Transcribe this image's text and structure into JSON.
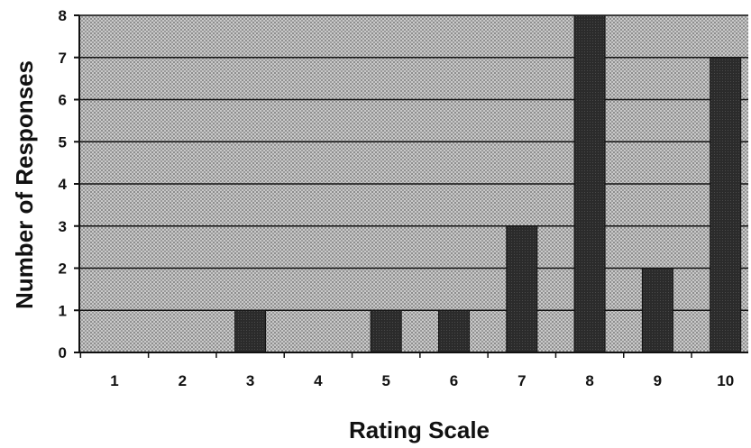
{
  "chart_data": {
    "type": "bar",
    "title": "",
    "xlabel": "Rating Scale",
    "ylabel": "Number of Responses",
    "categories": [
      "1",
      "2",
      "3",
      "4",
      "5",
      "6",
      "7",
      "8",
      "9",
      "10"
    ],
    "values": [
      0,
      0,
      1,
      0,
      1,
      1,
      3,
      8,
      2,
      7
    ],
    "ylim": [
      0,
      8
    ],
    "yticks": [
      0,
      1,
      2,
      3,
      4,
      5,
      6,
      7,
      8
    ],
    "grid": true,
    "legend": "none",
    "colors": {
      "bar": "#2b2b2b",
      "plot_background": "#b5b5b5",
      "gridline": "#111111"
    }
  }
}
